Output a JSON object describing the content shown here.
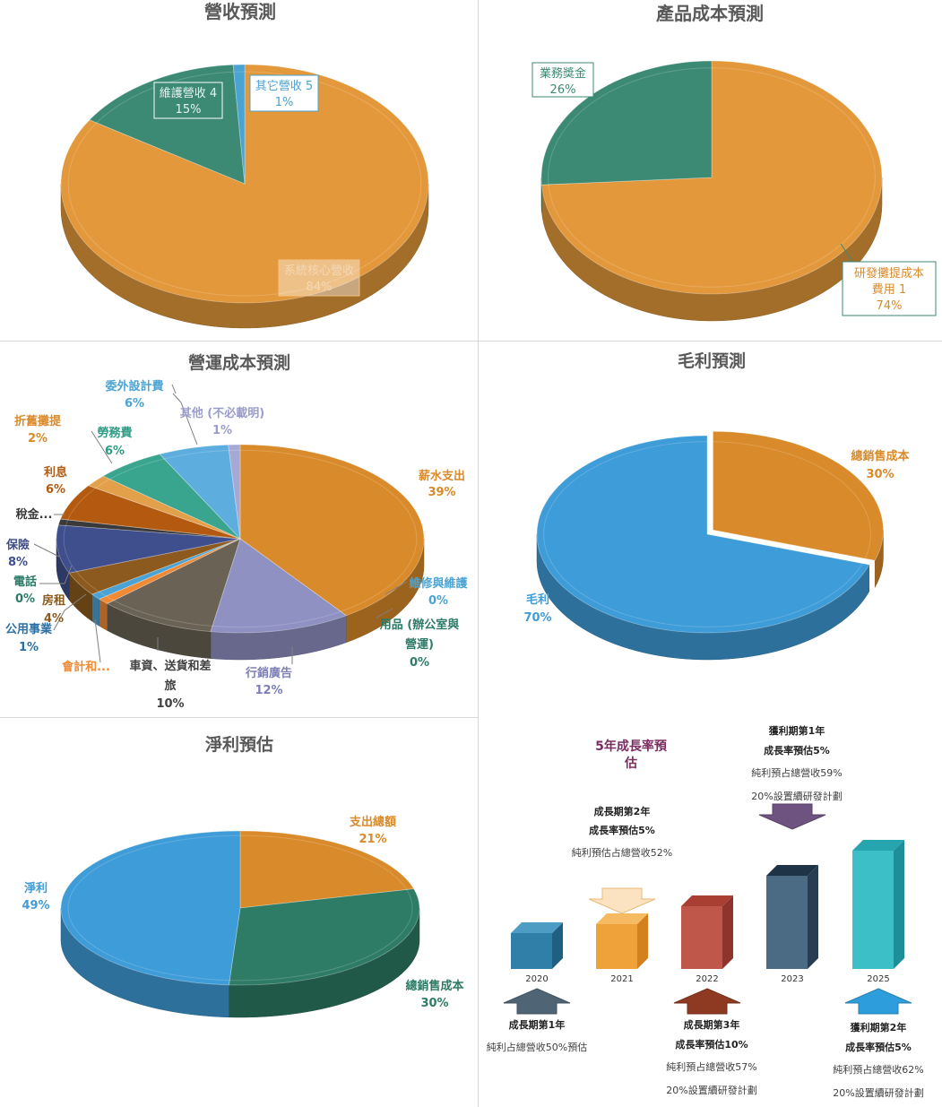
{
  "chart_data": [
    {
      "id": "revenue",
      "type": "pie",
      "title": "營收預測",
      "slices": [
        {
          "name": "系統核心營收",
          "value": 84,
          "pct_label": "84%",
          "color": "#E3983B"
        },
        {
          "name": "維護營收 4",
          "value": 15,
          "pct_label": "15%",
          "color": "#3C8A74"
        },
        {
          "name": "其它營收 5",
          "value": 1,
          "pct_label": "1%",
          "color": "#4BA3D3"
        }
      ]
    },
    {
      "id": "product-cost",
      "type": "pie",
      "title": "產品成本預測",
      "slices": [
        {
          "name": "研發攤提成本",
          "name2": "費用 1",
          "value": 74,
          "pct_label": "74%",
          "color": "#E3983B"
        },
        {
          "name": "業務獎金",
          "value": 26,
          "pct_label": "26%",
          "color": "#3C8A74"
        }
      ]
    },
    {
      "id": "operating-cost",
      "type": "pie",
      "title": "營運成本預測",
      "slices": [
        {
          "name": "薪水支出",
          "value": 39,
          "pct_label": "39%",
          "color": "#D98A2A"
        },
        {
          "name": "維修與維護",
          "value": 0,
          "pct_label": "0%",
          "color": "#4BA3D3"
        },
        {
          "name": "用品 (辦公室與",
          "name2": "營運)",
          "value": 0,
          "pct_label": "0%",
          "color": "#2D7A68"
        },
        {
          "name": "行銷廣告",
          "value": 12,
          "pct_label": "12%",
          "color": "#8F91C2"
        },
        {
          "name": "車資、送貨和差",
          "name2": "旅",
          "value": 10,
          "pct_label": "10%",
          "color": "#6A6255"
        },
        {
          "name": "會計和...",
          "value": 1,
          "pct_label": "",
          "color": "#F08A35"
        },
        {
          "name": "公用事業",
          "value": 1,
          "pct_label": "1%",
          "color": "#4BA3D3"
        },
        {
          "name": "房租",
          "value": 4,
          "pct_label": "4%",
          "color": "#8C5A1E"
        },
        {
          "name": "電話",
          "value": 0,
          "pct_label": "0%",
          "color": "#3C8A74"
        },
        {
          "name": "保險",
          "value": 8,
          "pct_label": "8%",
          "color": "#3F4E8C"
        },
        {
          "name": "稅金...",
          "value": 1,
          "pct_label": "",
          "color": "#3A3A3A"
        },
        {
          "name": "利息",
          "value": 6,
          "pct_label": "6%",
          "color": "#B35A10"
        },
        {
          "name": "折舊攤提",
          "value": 2,
          "pct_label": "2%",
          "color": "#E3A04B"
        },
        {
          "name": "勞務費",
          "value": 6,
          "pct_label": "6%",
          "color": "#3AA58F"
        },
        {
          "name": "委外設計費",
          "value": 6,
          "pct_label": "6%",
          "color": "#5DAEDF"
        },
        {
          "name": "其他 (不必載明)",
          "value": 1,
          "pct_label": "1%",
          "color": "#A6A9D6"
        }
      ]
    },
    {
      "id": "gross-profit",
      "type": "pie",
      "title": "毛利預測",
      "slices": [
        {
          "name": "總銷售成本",
          "value": 30,
          "pct_label": "30%",
          "color": "#D98A2A"
        },
        {
          "name": "毛利",
          "value": 70,
          "pct_label": "70%",
          "color": "#3E9CD8"
        }
      ]
    },
    {
      "id": "net-profit",
      "type": "pie",
      "title": "淨利預估",
      "slices": [
        {
          "name": "支出總額",
          "value": 21,
          "pct_label": "21%",
          "color": "#D98A2A"
        },
        {
          "name": "總銷售成本",
          "value": 30,
          "pct_label": "30%",
          "color": "#2E7B66"
        },
        {
          "name": "淨利",
          "value": 49,
          "pct_label": "49%",
          "color": "#3E9CD8"
        }
      ]
    }
  ],
  "growth": {
    "title_line1": "5年成長率預",
    "title_line2": "估",
    "title_color": "#7A2D5E",
    "cubes": [
      {
        "year": "2020",
        "size": 1.0,
        "front": "#2F7FA8",
        "side": "#1F5F82",
        "top": "#4C9CC4"
      },
      {
        "year": "2021",
        "size": 1.25,
        "front": "#F0A23A",
        "side": "#D2811E",
        "top": "#F6BA62"
      },
      {
        "year": "2022",
        "size": 1.75,
        "front": "#C0574B",
        "side": "#8E342C",
        "top": "#A93F33"
      },
      {
        "year": "2023",
        "size": 2.6,
        "front": "#4B6A84",
        "side": "#283D52",
        "top": "#1E3346"
      },
      {
        "year": "2025",
        "size": 3.3,
        "front": "#3DBFC7",
        "side": "#1E8F98",
        "top": "#26A5AE"
      }
    ],
    "notes": [
      {
        "lines": [
          "成長期第1年",
          "純利占總營收50%預估"
        ]
      },
      {
        "lines": [
          "成長期第2年",
          "成長率預估5%",
          "純利預估占總營收52%"
        ]
      },
      {
        "lines": [
          "成長期第3年",
          "成長率預估10%",
          "純利預占總營收57%",
          "20%設置續研發計劃"
        ]
      },
      {
        "lines": [
          "獲利期第1年",
          "成長率預估5%",
          "純利預占總營收59%",
          "20%設置續研發計劃"
        ]
      },
      {
        "lines": [
          "獲利期第2年",
          "成長率預估5%",
          "純利預占總營收62%",
          "20%設置續研發計劃"
        ]
      }
    ],
    "arrows": [
      {
        "dir": "up",
        "color": "#4F6475"
      },
      {
        "dir": "down",
        "color": "#FBE3C2",
        "stroke": "#E9B978"
      },
      {
        "dir": "up",
        "color": "#8E3A22"
      },
      {
        "dir": "down",
        "color": "#6E5280"
      },
      {
        "dir": "up",
        "color": "#2E9DDB"
      }
    ]
  }
}
